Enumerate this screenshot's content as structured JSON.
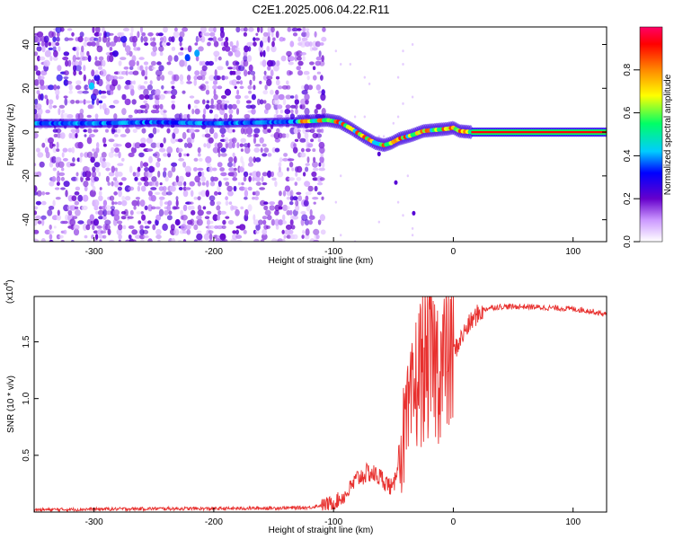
{
  "title": "C2E1.2025.006.04.22.R11",
  "chart_data": [
    {
      "type": "heatmap",
      "xlabel": "Height of straight line (km)",
      "ylabel": "Frequency (Hz)",
      "xlim": [
        -350,
        128
      ],
      "ylim": [
        -50,
        48
      ],
      "x_ticks": [
        -300,
        -200,
        -100,
        0,
        100
      ],
      "y_ticks": [
        -40,
        -20,
        0,
        20,
        40
      ],
      "colorbar": {
        "label": "Normalized spectral amplitude",
        "range": [
          0,
          1
        ],
        "ticks": [
          "0.0",
          "0.2",
          "0.4",
          "0.6",
          "0.8"
        ],
        "colors": [
          "#ffffff",
          "#cc99ff",
          "#6600cc",
          "#0000ff",
          "#00ccff",
          "#00ff66",
          "#ffff00",
          "#ff8800",
          "#ff0000",
          "#ff0066"
        ]
      },
      "ridge": {
        "x": [
          -350,
          -300,
          -250,
          -200,
          -150,
          -120,
          -105,
          -95,
          -85,
          -75,
          -65,
          -58,
          -52,
          -45,
          -35,
          -25,
          -15,
          -5,
          0,
          5,
          15,
          20,
          60,
          100,
          128
        ],
        "y": [
          4,
          4,
          4.5,
          4,
          4.5,
          5,
          5.5,
          4.5,
          1.5,
          -2,
          -5,
          -6,
          -5,
          -3,
          -1.5,
          0.5,
          1,
          1.5,
          2,
          0.5,
          0,
          0,
          0,
          0,
          0
        ]
      }
    },
    {
      "type": "line",
      "xlabel": "Height of straight line (km)",
      "ylabel": "SNR (10 * v/v)",
      "yscale_label": "(x10",
      "yscale_exp": "4",
      "xlim": [
        -350,
        128
      ],
      "ylim": [
        0,
        1.9
      ],
      "x_ticks": [
        -300,
        -200,
        -100,
        0,
        100
      ],
      "y_ticks": [
        "0.5",
        "1.0",
        "1.5"
      ],
      "color": "#e8312f",
      "series": [
        {
          "x": [
            -350,
            -300,
            -250,
            -200,
            -150,
            -120,
            -100,
            -90,
            -80,
            -70,
            -60,
            -50,
            -45,
            -40,
            -35,
            -30,
            -25,
            -20,
            -15,
            -10,
            -5,
            0,
            5,
            10,
            15,
            20,
            25,
            30,
            40,
            60,
            80,
            100,
            115,
            128
          ],
          "y": [
            0.02,
            0.025,
            0.03,
            0.03,
            0.035,
            0.04,
            0.08,
            0.15,
            0.3,
            0.35,
            0.3,
            0.2,
            0.55,
            0.7,
            0.9,
            1.2,
            1.3,
            1.35,
            1.3,
            1.3,
            1.35,
            1.4,
            1.5,
            1.6,
            1.68,
            1.74,
            1.78,
            1.8,
            1.81,
            1.81,
            1.8,
            1.79,
            1.77,
            1.74
          ]
        }
      ]
    }
  ]
}
